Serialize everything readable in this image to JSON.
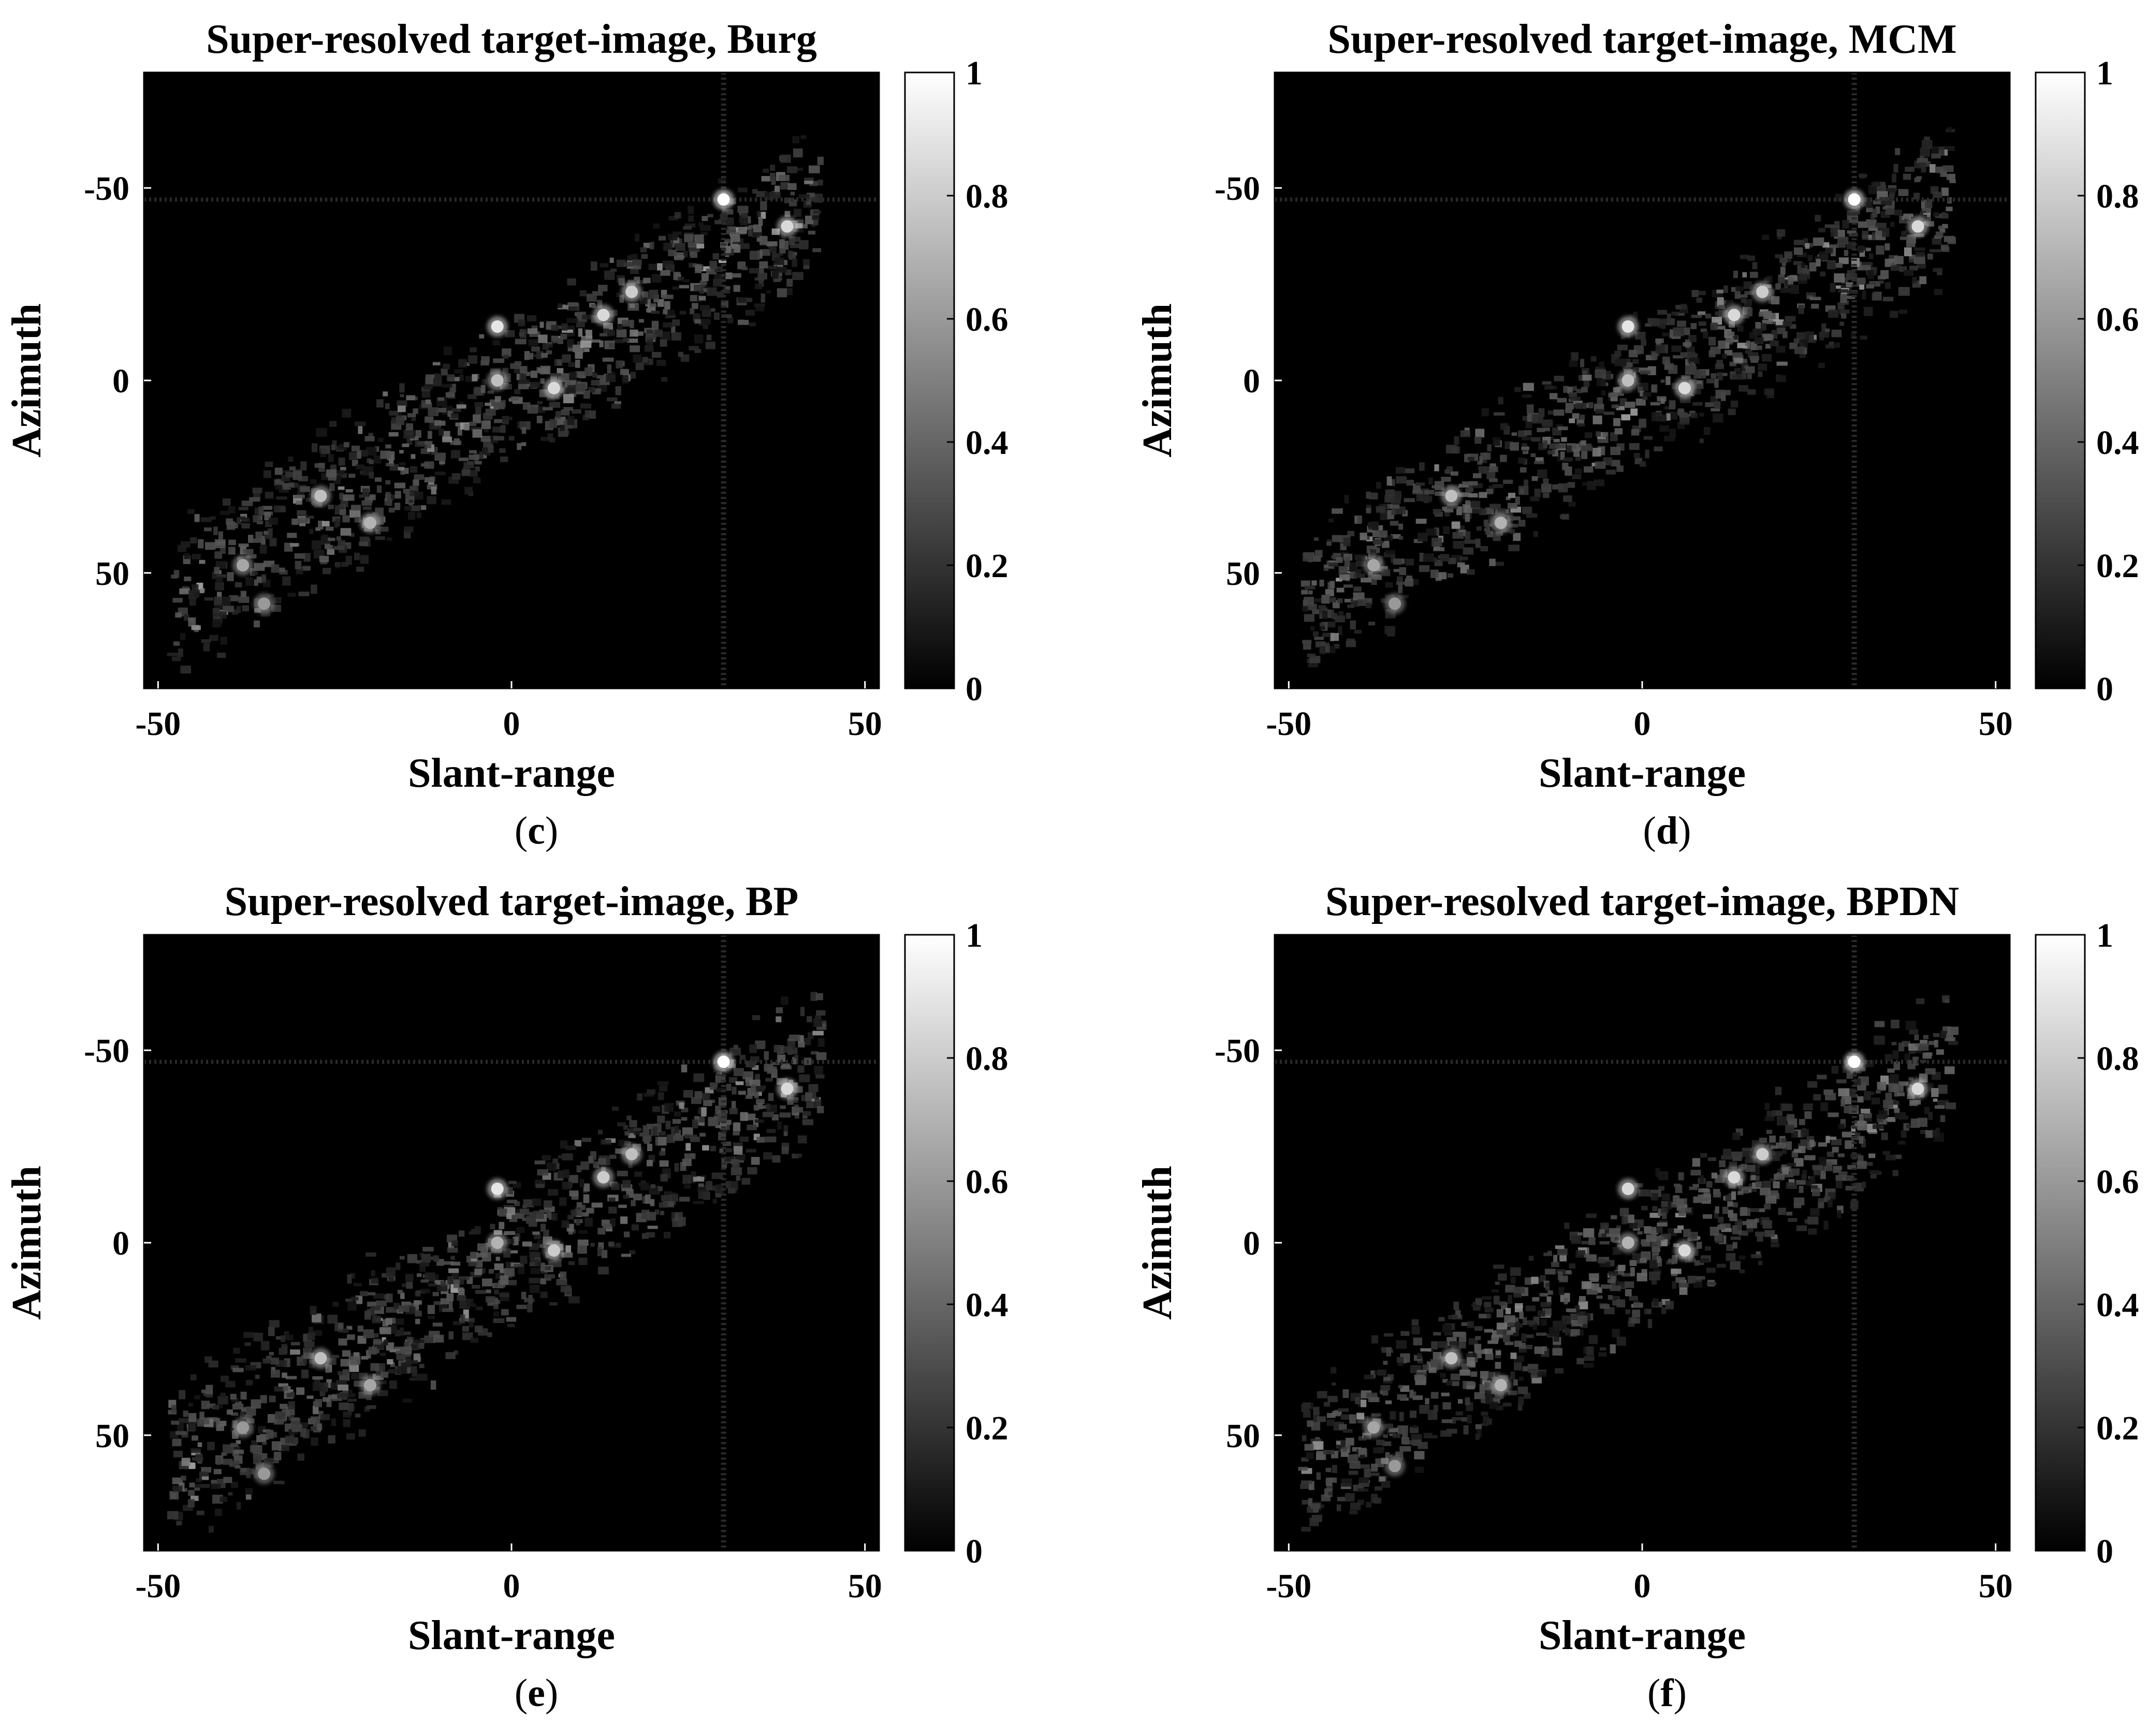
{
  "chart_data": [
    {
      "type": "heatmap",
      "panel_label": "c",
      "title": "Super-resolved target-image, Burg",
      "xlabel": "Slant-range",
      "ylabel": "Azimuth",
      "xlim": [
        -52,
        52
      ],
      "ylim": [
        -80,
        80
      ],
      "y_reversed": true,
      "xticks": [
        "-50",
        "0",
        "50"
      ],
      "yticks": [
        "-50",
        "0",
        "50"
      ],
      "colorbar": {
        "range": [
          0,
          1
        ],
        "ticks": [
          "0",
          "0.2",
          "0.4",
          "0.6",
          "0.8",
          "1"
        ],
        "colormap": "gray"
      },
      "bright_points": [
        {
          "x": 30,
          "y": -47,
          "v": 1.0
        },
        {
          "x": 39,
          "y": -40,
          "v": 0.85
        },
        {
          "x": 17,
          "y": -23,
          "v": 0.8
        },
        {
          "x": 13,
          "y": -17,
          "v": 0.85
        },
        {
          "x": -2,
          "y": -14,
          "v": 0.9
        },
        {
          "x": 6,
          "y": 2,
          "v": 0.85
        },
        {
          "x": -2,
          "y": 0,
          "v": 0.75
        },
        {
          "x": -27,
          "y": 30,
          "v": 0.75
        },
        {
          "x": -20,
          "y": 37,
          "v": 0.7
        },
        {
          "x": -38,
          "y": 48,
          "v": 0.65
        },
        {
          "x": -35,
          "y": 58,
          "v": 0.6
        }
      ]
    },
    {
      "type": "heatmap",
      "panel_label": "d",
      "title": "Super-resolved target-image, MCM",
      "xlabel": "Slant-range",
      "ylabel": "Azimuth",
      "xlim": [
        -52,
        52
      ],
      "ylim": [
        -80,
        80
      ],
      "y_reversed": true,
      "xticks": [
        "-50",
        "0",
        "50"
      ],
      "yticks": [
        "-50",
        "0",
        "50"
      ],
      "colorbar": {
        "range": [
          0,
          1
        ],
        "ticks": [
          "0",
          "0.2",
          "0.4",
          "0.6",
          "0.8",
          "1"
        ],
        "colormap": "gray"
      },
      "bright_points": [
        {
          "x": 30,
          "y": -47,
          "v": 1.0
        },
        {
          "x": 39,
          "y": -40,
          "v": 0.85
        },
        {
          "x": 17,
          "y": -23,
          "v": 0.8
        },
        {
          "x": 13,
          "y": -17,
          "v": 0.85
        },
        {
          "x": -2,
          "y": -14,
          "v": 0.9
        },
        {
          "x": 6,
          "y": 2,
          "v": 0.85
        },
        {
          "x": -2,
          "y": 0,
          "v": 0.75
        },
        {
          "x": -27,
          "y": 30,
          "v": 0.75
        },
        {
          "x": -20,
          "y": 37,
          "v": 0.7
        },
        {
          "x": -38,
          "y": 48,
          "v": 0.65
        },
        {
          "x": -35,
          "y": 58,
          "v": 0.6
        }
      ]
    },
    {
      "type": "heatmap",
      "panel_label": "e",
      "title": "Super-resolved target-image, BP",
      "xlabel": "Slant-range",
      "ylabel": "Azimuth",
      "xlim": [
        -52,
        52
      ],
      "ylim": [
        -80,
        80
      ],
      "y_reversed": true,
      "xticks": [
        "-50",
        "0",
        "50"
      ],
      "yticks": [
        "-50",
        "0",
        "50"
      ],
      "colorbar": {
        "range": [
          0,
          1
        ],
        "ticks": [
          "0",
          "0.2",
          "0.4",
          "0.6",
          "0.8",
          "1"
        ],
        "colormap": "gray"
      },
      "bright_points": [
        {
          "x": 30,
          "y": -47,
          "v": 1.0
        },
        {
          "x": 39,
          "y": -40,
          "v": 0.85
        },
        {
          "x": 17,
          "y": -23,
          "v": 0.75
        },
        {
          "x": 13,
          "y": -17,
          "v": 0.8
        },
        {
          "x": -2,
          "y": -14,
          "v": 0.9
        },
        {
          "x": 6,
          "y": 2,
          "v": 0.8
        },
        {
          "x": -2,
          "y": 0,
          "v": 0.7
        },
        {
          "x": -27,
          "y": 30,
          "v": 0.75
        },
        {
          "x": -20,
          "y": 37,
          "v": 0.65
        },
        {
          "x": -38,
          "y": 48,
          "v": 0.6
        },
        {
          "x": -35,
          "y": 60,
          "v": 0.6
        }
      ]
    },
    {
      "type": "heatmap",
      "panel_label": "f",
      "title": "Super-resolved target-image, BPDN",
      "xlabel": "Slant-range",
      "ylabel": "Azimuth",
      "xlim": [
        -52,
        52
      ],
      "ylim": [
        -80,
        80
      ],
      "y_reversed": true,
      "xticks": [
        "-50",
        "0",
        "50"
      ],
      "yticks": [
        "-50",
        "0",
        "50"
      ],
      "colorbar": {
        "range": [
          0,
          1
        ],
        "ticks": [
          "0",
          "0.2",
          "0.4",
          "0.6",
          "0.8",
          "1"
        ],
        "colormap": "gray"
      },
      "bright_points": [
        {
          "x": 30,
          "y": -47,
          "v": 1.0
        },
        {
          "x": 39,
          "y": -40,
          "v": 0.85
        },
        {
          "x": 17,
          "y": -23,
          "v": 0.8
        },
        {
          "x": 13,
          "y": -17,
          "v": 0.85
        },
        {
          "x": -2,
          "y": -14,
          "v": 0.85
        },
        {
          "x": 6,
          "y": 2,
          "v": 0.85
        },
        {
          "x": -2,
          "y": 0,
          "v": 0.7
        },
        {
          "x": -27,
          "y": 30,
          "v": 0.75
        },
        {
          "x": -20,
          "y": 37,
          "v": 0.7
        },
        {
          "x": -38,
          "y": 48,
          "v": 0.65
        },
        {
          "x": -35,
          "y": 58,
          "v": 0.6
        }
      ]
    }
  ]
}
